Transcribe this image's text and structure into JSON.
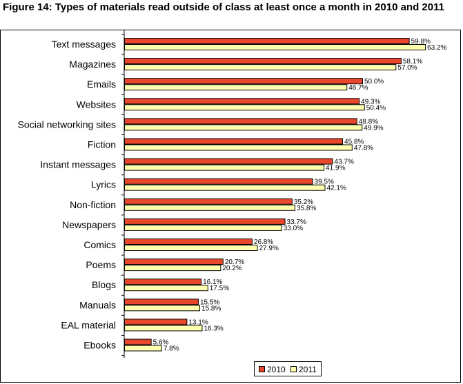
{
  "title": "Figure 14: Types of materials read outside of class at least once a month in 2010 and 2011",
  "colors": {
    "s2010": "#e8472b",
    "s2011": "#ffffb0",
    "outline": "#000000"
  },
  "chart_data": {
    "type": "bar",
    "orientation": "horizontal",
    "title": "Figure 14: Types of materials read outside of class at least once a month in 2010 and 2011",
    "xlabel": "",
    "ylabel": "",
    "xlim": [
      0,
      70
    ],
    "grid": false,
    "legend_position": "bottom-right",
    "categories": [
      "Text messages",
      "Magazines",
      "Emails",
      "Websites",
      "Social networking sites",
      "Fiction",
      "Instant messages",
      "Lyrics",
      "Non-fiction",
      "Newspapers",
      "Comics",
      "Poems",
      "Blogs",
      "Manuals",
      "EAL material",
      "Ebooks"
    ],
    "series": [
      {
        "name": "2010",
        "values": [
          59.8,
          58.1,
          50.0,
          49.3,
          48.8,
          45.8,
          43.7,
          39.5,
          35.2,
          33.7,
          26.8,
          20.7,
          16.1,
          15.5,
          13.1,
          5.6
        ],
        "labels": [
          "59.8%",
          "58.1%",
          "50.0%",
          "49.3%",
          "48.8%",
          "45.8%",
          "43.7%",
          "39.5%",
          "35.2%",
          "33.7%",
          "26.8%",
          "20.7%",
          "16.1%",
          "15.5%",
          "13.1%",
          "5.6%"
        ]
      },
      {
        "name": "2011",
        "values": [
          63.2,
          57.0,
          46.7,
          50.4,
          49.9,
          47.8,
          41.9,
          42.1,
          35.8,
          33.0,
          27.9,
          20.2,
          17.5,
          15.8,
          16.3,
          7.8
        ],
        "labels": [
          "63.2%",
          "57.0%",
          "46.7%",
          "50.4%",
          "49.9%",
          "47.8%",
          "41.9%",
          "42.1%",
          "35.8%",
          "33.0%",
          "27.9%",
          "20.2%",
          "17.5%",
          "15.8%",
          "16.3%",
          "7.8%"
        ]
      }
    ]
  }
}
